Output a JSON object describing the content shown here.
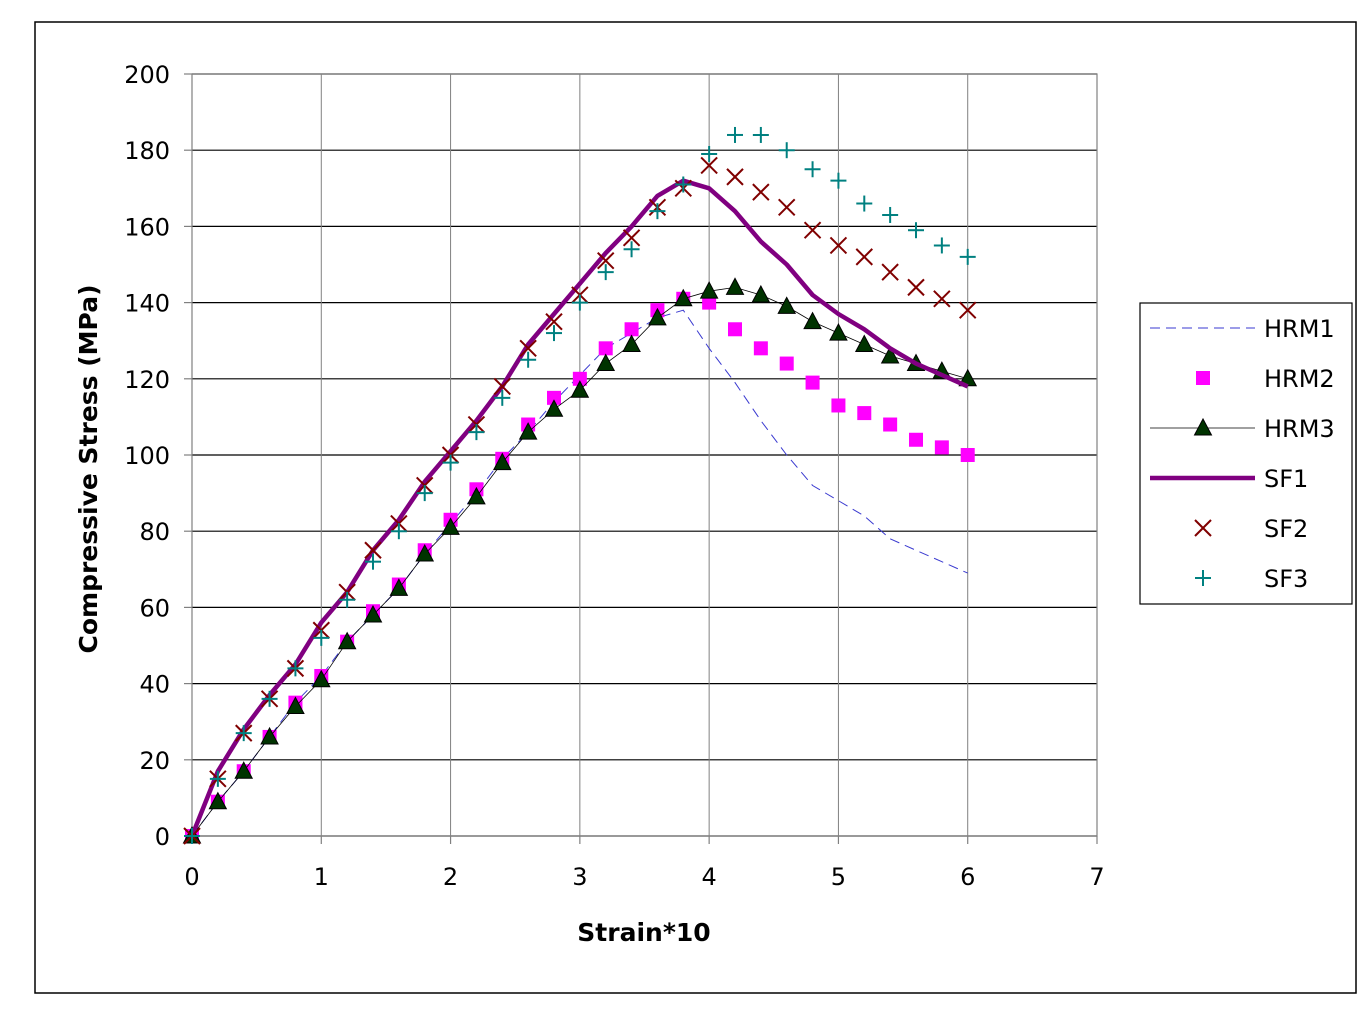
{
  "chart_data": {
    "type": "line",
    "xlabel": "Strain*10",
    "ylabel": "Compressive Stress (MPa)",
    "xlim": [
      0,
      7
    ],
    "ylim": [
      0,
      200
    ],
    "xticks": [
      "0",
      "1",
      "2",
      "3",
      "4",
      "5",
      "6",
      "7"
    ],
    "yticks": [
      "0",
      "20",
      "40",
      "60",
      "80",
      "100",
      "120",
      "140",
      "160",
      "180",
      "200"
    ],
    "grid": true,
    "legend_position": "right",
    "x": [
      0,
      0.2,
      0.4,
      0.6,
      0.8,
      1.0,
      1.2,
      1.4,
      1.6,
      1.8,
      2.0,
      2.2,
      2.4,
      2.6,
      2.8,
      3.0,
      3.2,
      3.4,
      3.6,
      3.8,
      4.0,
      4.2,
      4.4,
      4.6,
      4.8,
      5.0,
      5.2,
      5.4,
      5.6,
      5.8,
      6.0
    ],
    "series": [
      {
        "name": "HRM1",
        "style": "dashed-line",
        "color": "#3a3ad0",
        "values": [
          0,
          9,
          17,
          26,
          35,
          42,
          51,
          58,
          65,
          74,
          82,
          90,
          99,
          106,
          114,
          121,
          128,
          132,
          136,
          138,
          128,
          119,
          109,
          100,
          92,
          88,
          84,
          78,
          75,
          72,
          69
        ]
      },
      {
        "name": "HRM2",
        "style": "square-markers",
        "color": "#ff00ff",
        "values": [
          0,
          9,
          17,
          26,
          35,
          42,
          51,
          59,
          66,
          75,
          83,
          91,
          99,
          108,
          115,
          120,
          128,
          133,
          138,
          141,
          140,
          133,
          128,
          124,
          119,
          113,
          111,
          108,
          104,
          102,
          100
        ]
      },
      {
        "name": "HRM3",
        "style": "triangle-markers-line",
        "color": "#003300",
        "values": [
          0,
          9,
          17,
          26,
          34,
          41,
          51,
          58,
          65,
          74,
          81,
          89,
          98,
          106,
          112,
          117,
          124,
          129,
          136,
          141,
          143,
          144,
          142,
          139,
          135,
          132,
          129,
          126,
          124,
          122,
          120
        ]
      },
      {
        "name": "SF1",
        "style": "thick-line",
        "color": "#800080",
        "values": [
          0,
          17,
          28,
          37,
          45,
          56,
          64,
          75,
          83,
          93,
          101,
          109,
          118,
          129,
          137,
          145,
          153,
          160,
          168,
          172,
          170,
          164,
          156,
          150,
          142,
          137,
          133,
          128,
          124,
          121,
          118
        ]
      },
      {
        "name": "SF2",
        "style": "x-markers",
        "color": "#800000",
        "values": [
          0,
          15,
          27,
          36,
          44,
          54,
          64,
          75,
          82,
          92,
          100,
          108,
          118,
          128,
          135,
          142,
          151,
          157,
          165,
          170,
          176,
          173,
          169,
          165,
          159,
          155,
          152,
          148,
          144,
          141,
          138
        ]
      },
      {
        "name": "SF3",
        "style": "plus-markers",
        "color": "#008080",
        "values": [
          0,
          15,
          27,
          36,
          44,
          52,
          62,
          72,
          80,
          90,
          98,
          106,
          115,
          125,
          132,
          140,
          148,
          154,
          164,
          171,
          179,
          184,
          184,
          180,
          175,
          172,
          166,
          163,
          159,
          155,
          152
        ]
      }
    ]
  }
}
